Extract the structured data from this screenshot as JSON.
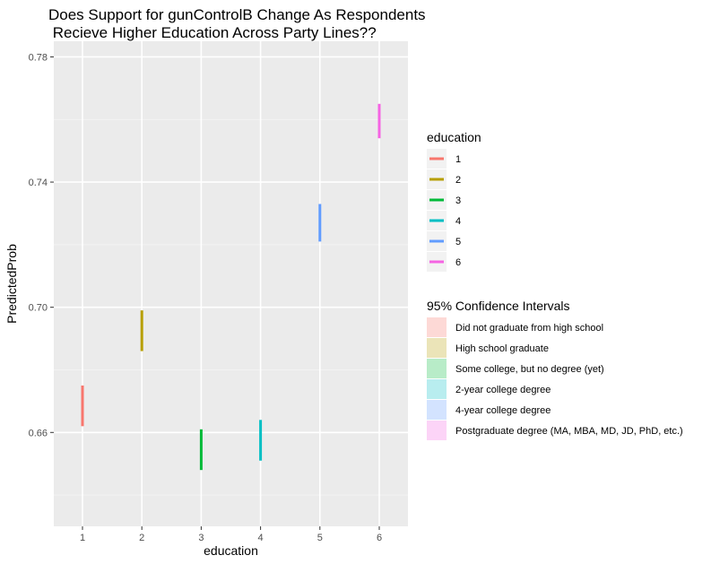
{
  "chart_data": {
    "type": "errorbar",
    "title_lines": [
      "Does Support for gunControlB Change As Respondents",
      " Recieve Higher Education Across Party Lines??"
    ],
    "xlabel": "education",
    "ylabel": "PredictedProb",
    "x_ticks": [
      "1",
      "2",
      "3",
      "4",
      "5",
      "6"
    ],
    "y_ticks": [
      0.66,
      0.7,
      0.74,
      0.78
    ],
    "y_tick_labels": [
      "0.66",
      "0.70",
      "0.74",
      "0.78"
    ],
    "ylim": [
      0.63,
      0.785
    ],
    "grid": true,
    "series": [
      {
        "x": 1,
        "lower": 0.662,
        "upper": 0.675,
        "color": "#F8766D"
      },
      {
        "x": 2,
        "lower": 0.686,
        "upper": 0.699,
        "color": "#B79F00"
      },
      {
        "x": 3,
        "lower": 0.648,
        "upper": 0.661,
        "color": "#00BA38"
      },
      {
        "x": 4,
        "lower": 0.651,
        "upper": 0.664,
        "color": "#00BFC4"
      },
      {
        "x": 5,
        "lower": 0.721,
        "upper": 0.733,
        "color": "#619CFF"
      },
      {
        "x": 6,
        "lower": 0.754,
        "upper": 0.765,
        "color": "#F564E3"
      }
    ],
    "legend_education": {
      "title": "education",
      "placement": "right",
      "entries": [
        {
          "label": "1",
          "color": "#F8766D"
        },
        {
          "label": "2",
          "color": "#B79F00"
        },
        {
          "label": "3",
          "color": "#00BA38"
        },
        {
          "label": "4",
          "color": "#00BFC4"
        },
        {
          "label": "5",
          "color": "#619CFF"
        },
        {
          "label": "6",
          "color": "#F564E3"
        }
      ]
    },
    "legend_ci": {
      "title": "95% Confidence Intervals",
      "placement": "right",
      "entries": [
        {
          "label": "Did not graduate from high school",
          "color": "#F8766D"
        },
        {
          "label": "High school graduate",
          "color": "#B79F00"
        },
        {
          "label": "Some college, but no degree (yet)",
          "color": "#00BA38"
        },
        {
          "label": "2-year college degree",
          "color": "#00BFC4"
        },
        {
          "label": "4-year college degree",
          "color": "#619CFF"
        },
        {
          "label": "Postgraduate degree (MA, MBA, MD, JD, PhD, etc.)",
          "color": "#F564E3"
        }
      ]
    }
  }
}
